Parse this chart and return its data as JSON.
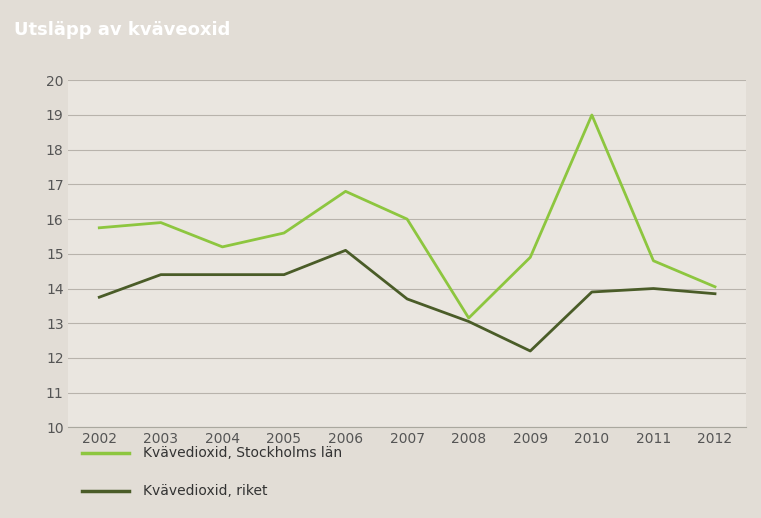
{
  "title": "Utsläpp av kväveoxid",
  "title_bg_color": "#928c83",
  "title_text_color": "#ffffff",
  "plot_bg_color": "#eae6e0",
  "fig_bg_color": "#e2ddd6",
  "years": [
    2002,
    2003,
    2004,
    2005,
    2006,
    2007,
    2008,
    2009,
    2010,
    2011,
    2012
  ],
  "series_stockholm": [
    15.75,
    15.9,
    15.2,
    15.6,
    16.8,
    16.0,
    13.15,
    14.9,
    19.0,
    14.8,
    14.05
  ],
  "series_riket": [
    13.75,
    14.4,
    14.4,
    14.4,
    15.1,
    13.7,
    13.05,
    12.2,
    13.9,
    14.0,
    13.85
  ],
  "color_stockholm": "#8dc63f",
  "color_riket": "#4a5c28",
  "ylim": [
    10,
    20
  ],
  "yticks": [
    10,
    11,
    12,
    13,
    14,
    15,
    16,
    17,
    18,
    19,
    20
  ],
  "legend_label_stockholm": "Kvävedioxid, Stockholms län",
  "legend_label_riket": "Kvävedioxid, riket",
  "linewidth": 2.0,
  "grid_color": "#b8b3ac",
  "tick_color": "#555555",
  "tick_fontsize": 10
}
